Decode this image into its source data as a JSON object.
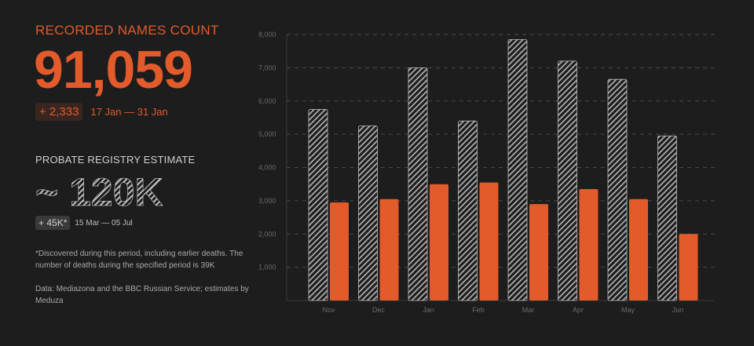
{
  "colors": {
    "accent": "#e35a2b",
    "background": "#1d1d1d",
    "hatch": "#bdbdbd",
    "grid": "#4a4a4a",
    "axis_text": "#6a6a6a"
  },
  "recorded": {
    "title": "RECORDED NAMES COUNT",
    "value": "91,059",
    "delta": "+ 2,333",
    "period": "17 Jan — 31 Jan"
  },
  "probate": {
    "title": "PROBATE REGISTRY ESTIMATE",
    "value": "~ 120K",
    "delta": "+ 45K*",
    "period": "15 Mar — 05 Jul"
  },
  "footnote": "*Discovered during this period, including earlier deaths. The number of deaths during the specified period is 39K",
  "source": "Data: Mediazona and the BBC Russian Service; estimates by Meduza",
  "chart_data": {
    "type": "bar",
    "categories": [
      "Nov",
      "Dec",
      "Jan",
      "Feb",
      "Mar",
      "Apr",
      "May",
      "Jun"
    ],
    "series": [
      {
        "style": "hatched",
        "values": [
          5750,
          5250,
          7000,
          5400,
          7850,
          7200,
          6650,
          4950
        ]
      },
      {
        "style": "solid",
        "values": [
          2950,
          3050,
          3500,
          3550,
          2900,
          3350,
          3050,
          2000
        ]
      }
    ],
    "ylim": [
      0,
      8000
    ],
    "yticks": [
      "1,000",
      "2,000",
      "3,000",
      "4,000",
      "5,000",
      "6,000",
      "7,000",
      "8,000"
    ],
    "grid": true,
    "xlabel": "",
    "ylabel": ""
  }
}
